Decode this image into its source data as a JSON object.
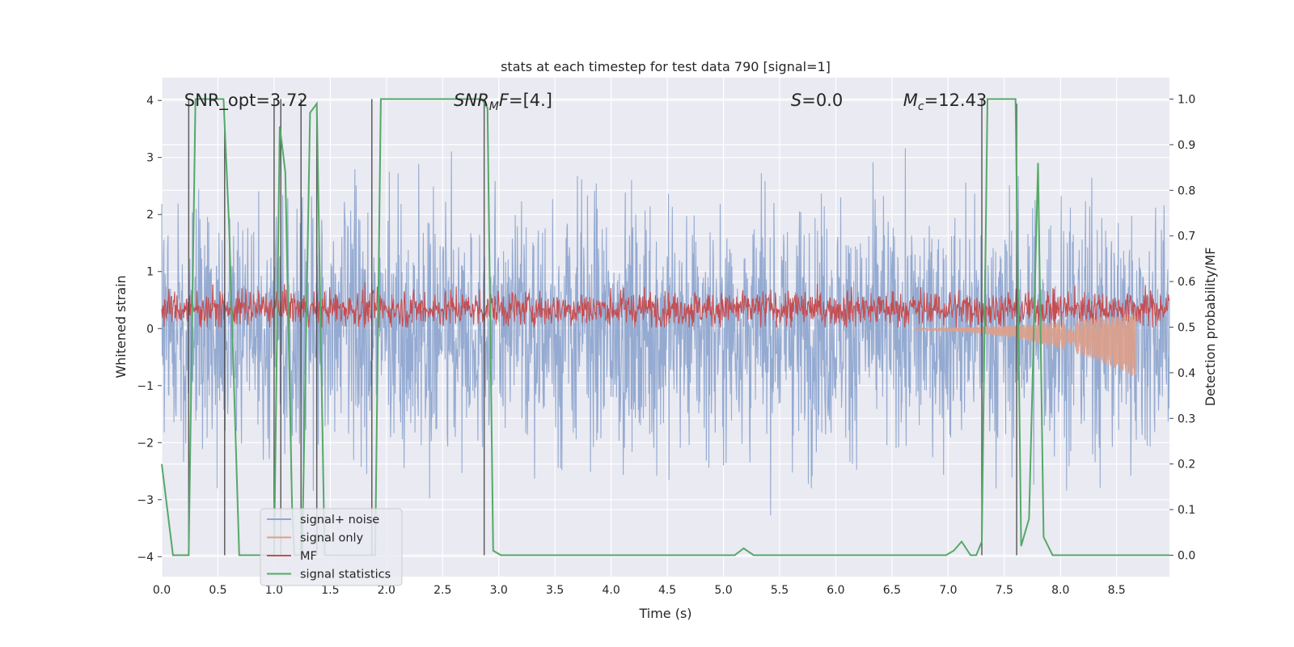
{
  "chart_data": {
    "type": "line",
    "title": "stats at each timestep for test data 790 [signal=1]",
    "xlabel": "Time (s)",
    "ylabel_left": "Whitened strain",
    "ylabel_right": "Detection probability/MF",
    "xlim": [
      0.0,
      8.97
    ],
    "ylim_left": [
      -4.35,
      4.4
    ],
    "ylim_right": [
      -0.047,
      1.047
    ],
    "xticks": [
      "0.0",
      "0.5",
      "1.0",
      "1.5",
      "2.0",
      "2.5",
      "3.0",
      "3.5",
      "4.0",
      "4.5",
      "5.0",
      "5.5",
      "6.0",
      "6.5",
      "7.0",
      "7.5",
      "8.0",
      "8.5"
    ],
    "yticks_left": [
      "−4",
      "−3",
      "−2",
      "−1",
      "0",
      "1",
      "2",
      "3",
      "4"
    ],
    "yticks_right": [
      "0.0",
      "0.1",
      "0.2",
      "0.3",
      "0.4",
      "0.5",
      "0.6",
      "0.7",
      "0.8",
      "0.9",
      "1.0"
    ],
    "grid": true,
    "legend_position": "lower-left",
    "annotations": [
      {
        "text": "SNR_opt=3.72",
        "x": 0.2,
        "y": 4.0
      },
      {
        "text": "SNR_MF=[4.]",
        "x": 2.6,
        "y": 4.0
      },
      {
        "text": "S=0.0",
        "x": 5.6,
        "y": 4.0
      },
      {
        "text": "M_c=12.43",
        "x": 6.6,
        "y": 4.0
      }
    ],
    "series": [
      {
        "name": "signal+ noise",
        "color": "#8fa6cf",
        "axis": "left",
        "style": "dense noise, amplitude roughly -3.5 to 3.5"
      },
      {
        "name": "signal only",
        "color": "#dd9f8a",
        "axis": "left",
        "start": 6.7,
        "end": 8.67,
        "final_value": -0.75
      },
      {
        "name": "MF",
        "color": "#c44e52",
        "axis": "left",
        "range": [
          0.0,
          1.0
        ]
      },
      {
        "name": "signal statistics",
        "color": "#55a868",
        "axis": "right",
        "x": [
          0.0,
          0.07,
          0.1,
          0.17,
          0.24,
          0.3,
          0.55,
          0.6,
          0.69,
          0.8,
          1.0,
          1.05,
          1.1,
          1.16,
          1.18,
          1.25,
          1.32,
          1.38,
          1.45,
          1.55,
          1.65,
          1.75,
          1.85,
          1.9,
          1.95,
          2.85,
          2.9,
          2.95,
          3.02,
          5.1,
          5.18,
          5.27,
          6.98,
          7.05,
          7.12,
          7.2,
          7.25,
          7.3,
          7.35,
          7.6,
          7.65,
          7.72,
          7.8,
          7.85,
          7.93,
          8.97
        ],
        "values": [
          0.2,
          0.06,
          0.0,
          0.0,
          0.0,
          1.0,
          1.0,
          0.72,
          0.0,
          0.0,
          0.0,
          0.94,
          0.84,
          0.11,
          0.0,
          0.0,
          0.97,
          0.99,
          0.0,
          0.0,
          0.0,
          0.0,
          0.0,
          0.0,
          1.0,
          1.0,
          0.98,
          0.01,
          0.0,
          0.0,
          0.015,
          0.0,
          0.0,
          0.01,
          0.03,
          0.0,
          0.0,
          0.03,
          1.0,
          1.0,
          0.02,
          0.08,
          0.86,
          0.04,
          0.0,
          0.0
        ]
      },
      {
        "name": "detection markers",
        "color": "#444444",
        "axis": "right",
        "style": "vertical lines",
        "x": [
          0.24,
          0.56,
          1.0,
          1.06,
          1.24,
          1.38,
          1.87,
          2.87,
          7.3,
          7.61
        ],
        "top": [
          1.0,
          0.94,
          1.0,
          1.0,
          1.0,
          0.99,
          1.0,
          0.99,
          1.0,
          0.99
        ]
      }
    ]
  }
}
